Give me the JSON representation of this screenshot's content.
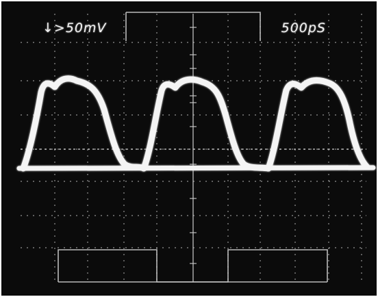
{
  "scope": {
    "vertical_scale_label": "↓>50mV",
    "time_base_label": "500pS"
  },
  "colors": {
    "screen_background": "#0b0b0b",
    "trace": "#f4f4f4",
    "graticule": "#cfcfcf"
  }
}
